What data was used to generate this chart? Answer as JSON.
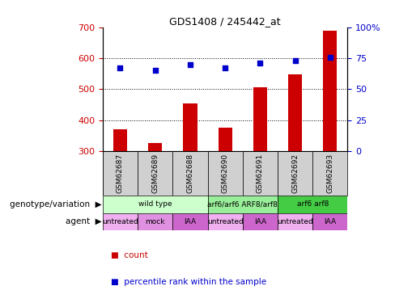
{
  "title": "GDS1408 / 245442_at",
  "samples": [
    "GSM62687",
    "GSM62689",
    "GSM62688",
    "GSM62690",
    "GSM62691",
    "GSM62692",
    "GSM62693"
  ],
  "bar_values": [
    370,
    325,
    455,
    375,
    505,
    548,
    690
  ],
  "scatter_values": [
    67,
    65,
    70,
    67,
    71,
    73,
    76
  ],
  "bar_color": "#cc0000",
  "scatter_color": "#0000cc",
  "bar_bottom": 300,
  "left_ylim": [
    300,
    700
  ],
  "left_yticks": [
    300,
    400,
    500,
    600,
    700
  ],
  "right_ylim": [
    0,
    100
  ],
  "right_yticks": [
    0,
    25,
    50,
    75,
    100
  ],
  "right_yticklabels": [
    "0",
    "25",
    "50",
    "75",
    "100%"
  ],
  "grid_lines": [
    400,
    500,
    600
  ],
  "sample_label_color": "#d0d0d0",
  "genotype_groups": [
    {
      "label": "wild type",
      "span": [
        0,
        3
      ],
      "color": "#ccffcc"
    },
    {
      "label": "arf6/arf6 ARF8/arf8",
      "span": [
        3,
        5
      ],
      "color": "#99ee99"
    },
    {
      "label": "arf6 arf8",
      "span": [
        5,
        7
      ],
      "color": "#44cc44"
    }
  ],
  "agent_groups": [
    {
      "label": "untreated",
      "span": [
        0,
        1
      ],
      "color": "#f0b0f0"
    },
    {
      "label": "mock",
      "span": [
        1,
        2
      ],
      "color": "#e090e0"
    },
    {
      "label": "IAA",
      "span": [
        2,
        3
      ],
      "color": "#cc66cc"
    },
    {
      "label": "untreated",
      "span": [
        3,
        4
      ],
      "color": "#f0b0f0"
    },
    {
      "label": "IAA",
      "span": [
        4,
        5
      ],
      "color": "#cc66cc"
    },
    {
      "label": "untreated",
      "span": [
        5,
        6
      ],
      "color": "#f0b0f0"
    },
    {
      "label": "IAA",
      "span": [
        6,
        7
      ],
      "color": "#cc66cc"
    }
  ],
  "ylabel_left_color": "#cc0000",
  "ylabel_right_color": "#0000cc",
  "genotype_label": "genotype/variation",
  "agent_label": "agent",
  "legend_count_label": "count",
  "legend_pct_label": "percentile rank within the sample"
}
